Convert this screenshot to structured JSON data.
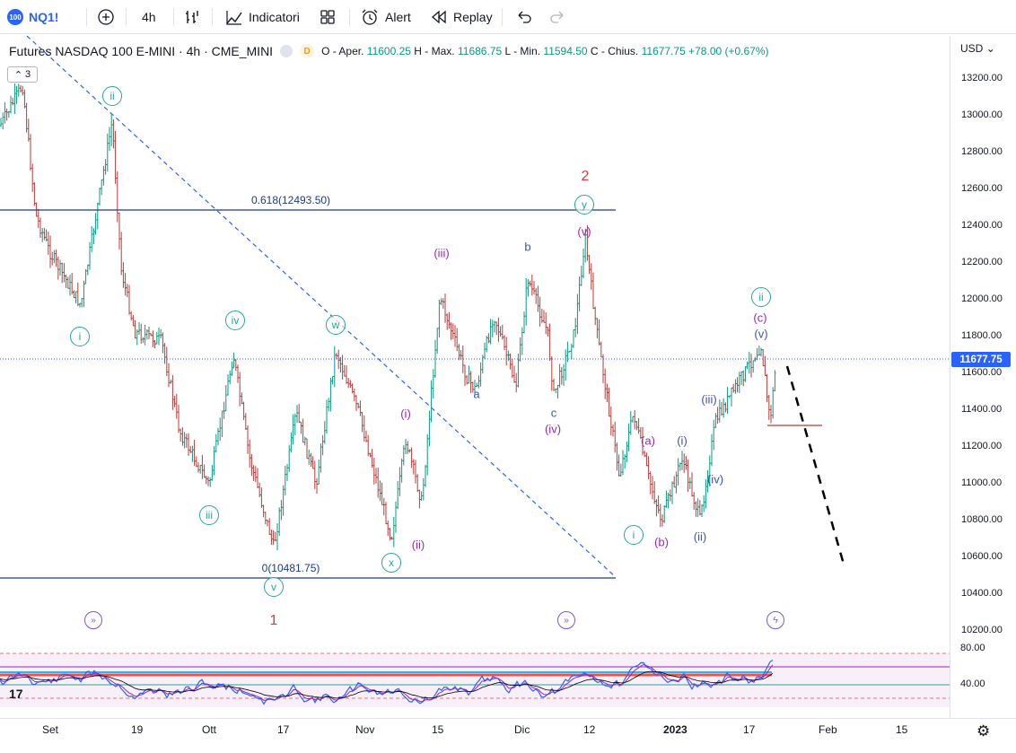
{
  "toolbar": {
    "symbol_badge": "100",
    "symbol": "NQ1!",
    "interval": "4h",
    "indicators_label": "Indicatori",
    "alert_label": "Alert",
    "replay_label": "Replay"
  },
  "legend": {
    "title": "Futures NASDAQ 100 E-MINI · 4h · CME_MINI",
    "d_badge": "D",
    "o_label": "O - Aper.",
    "o_value": "11600.25",
    "h_label": "H - Max.",
    "h_value": "11686.75",
    "l_label": "L - Min.",
    "l_value": "11594.50",
    "c_label": "C - Chius.",
    "c_value": "11677.75",
    "change": "+78.00 (+0.67%)",
    "layers_count": "3"
  },
  "price_axis": {
    "currency": "USD",
    "ticks": [
      "13200.00",
      "13000.00",
      "12800.00",
      "12600.00",
      "12400.00",
      "12200.00",
      "12000.00",
      "11800.00",
      "11600.00",
      "11400.00",
      "11200.00",
      "11000.00",
      "10800.00",
      "10600.00",
      "10400.00",
      "10200.00"
    ],
    "last_price": "11677.75"
  },
  "oscillator_axis": {
    "ticks": [
      "80.00",
      "40.00"
    ]
  },
  "time_axis": {
    "ticks": [
      "Set",
      "19",
      "Ott",
      "17",
      "Nov",
      "15",
      "Dic",
      "12",
      "2023",
      "17",
      "Feb",
      "15"
    ]
  },
  "fib": {
    "upper_label": "0.618(12493.50)",
    "lower_label": "0(10481.75)"
  },
  "wave_labels": {
    "major_1": "1",
    "major_2": "2",
    "circ_i_1": "i",
    "circ_ii_1": "ii",
    "circ_iii_1": "iii",
    "circ_iv_1": "iv",
    "circ_v_1": "v",
    "circ_w": "w",
    "circ_x": "x",
    "circ_y": "y",
    "circ_i_2": "i",
    "circ_ii_2": "ii",
    "p_i": "(i)",
    "p_ii": "(ii)",
    "p_iii": "(iii)",
    "p_iv": "(iv)",
    "p_v": "(v)",
    "a": "a",
    "b": "b",
    "c": "c",
    "p_a": "(a)",
    "p_b": "(b)",
    "p_c": "(c)",
    "b_i": "(i)",
    "b_ii": "(ii)",
    "b_iii": "(iii)",
    "b_iv": "(iv)",
    "b_v": "(v)"
  },
  "colors": {
    "up": "#089981",
    "down": "#b83b3b",
    "trend": "#2962ff",
    "fib": "#1e3a8a",
    "wave_circle": "#26a69a",
    "wave_purple": "#9c27b0",
    "wave_blue": "#3f51b5",
    "major": "#e53935"
  }
}
